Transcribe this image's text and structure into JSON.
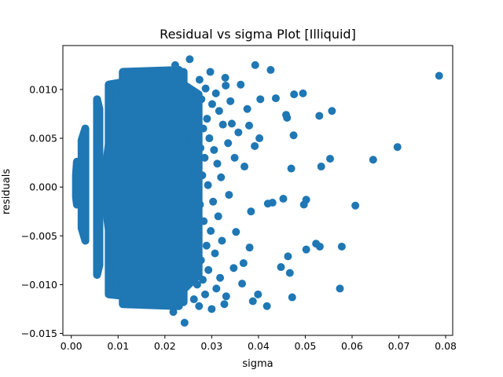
{
  "chart_data": {
    "type": "scatter",
    "title": "Residual vs sigma Plot [Illiquid]",
    "xlabel": "sigma",
    "ylabel": "residuals",
    "xlim": [
      -0.0018,
      0.0815
    ],
    "ylim": [
      -0.0152,
      0.0145
    ],
    "xticks": [
      0.0,
      0.01,
      0.02,
      0.03,
      0.04,
      0.05,
      0.06,
      0.07,
      0.08
    ],
    "xtick_labels": [
      "0.00",
      "0.01",
      "0.02",
      "0.03",
      "0.04",
      "0.05",
      "0.06",
      "0.07",
      "0.08"
    ],
    "yticks": [
      -0.015,
      -0.01,
      -0.005,
      0.0,
      0.005,
      0.01
    ],
    "ytick_labels": [
      "−0.015",
      "−0.010",
      "−0.005",
      "0.000",
      "0.005",
      "0.010"
    ],
    "grid": false,
    "marker_color": "#1f77b4",
    "series": [
      {
        "points": [
          [
            0.0786,
            0.0114
          ],
          [
            0.0697,
            0.0041
          ],
          [
            0.0645,
            0.0028
          ],
          [
            0.0607,
            -0.0019
          ],
          [
            0.0578,
            -0.0061
          ],
          [
            0.0574,
            -0.0104
          ],
          [
            0.0557,
            0.0078
          ],
          [
            0.0553,
            0.0029
          ],
          [
            0.0534,
            0.0021
          ],
          [
            0.053,
            0.0073
          ],
          [
            0.0531,
            -0.0061
          ],
          [
            0.0523,
            -0.0058
          ],
          [
            0.0502,
            -0.0064
          ],
          [
            0.0502,
            -0.0013
          ],
          [
            0.0497,
            -0.0018
          ],
          [
            0.0495,
            0.0096
          ],
          [
            0.0476,
            0.0095
          ],
          [
            0.0475,
            0.0053
          ],
          [
            0.0472,
            -0.0113
          ],
          [
            0.047,
            0.0019
          ],
          [
            0.0467,
            -0.0088
          ],
          [
            0.0463,
            -0.0071
          ],
          [
            0.0461,
            0.0071
          ],
          [
            0.0459,
            0.0074
          ],
          [
            0.0453,
            -0.0012
          ],
          [
            0.0448,
            -0.0082
          ],
          [
            0.0437,
            0.0091
          ],
          [
            0.043,
            -0.0016
          ],
          [
            0.0426,
            0.012
          ],
          [
            0.042,
            -0.0017
          ],
          [
            0.0418,
            -0.0122
          ],
          [
            0.0404,
            0.009
          ],
          [
            0.0402,
            0.005
          ],
          [
            0.0399,
            -0.011
          ],
          [
            0.0393,
            0.0125
          ],
          [
            0.0392,
            0.0042
          ],
          [
            0.0388,
            -0.0117
          ],
          [
            0.0384,
            -0.0025
          ],
          [
            0.038,
            0.0063
          ],
          [
            0.0381,
            -0.0062
          ],
          [
            0.0376,
            0.008
          ],
          [
            0.037,
            0.0021
          ],
          [
            0.0368,
            -0.0078
          ],
          [
            0.0365,
            -0.0099
          ],
          [
            0.0362,
            0.0105
          ],
          [
            0.0357,
            0.0056
          ],
          [
            0.0352,
            -0.0046
          ],
          [
            0.0349,
            0.003
          ],
          [
            0.0347,
            -0.0083
          ],
          [
            0.0343,
            0.0065
          ],
          [
            0.034,
            0.0088
          ],
          [
            0.0337,
            -0.0008
          ],
          [
            0.0335,
            0.0045
          ],
          [
            0.0331,
            -0.0112
          ],
          [
            0.033,
            0.0104
          ],
          [
            0.0329,
            0.0112
          ],
          [
            0.0327,
            -0.012
          ],
          [
            0.0324,
            0.0064
          ],
          [
            0.0322,
            -0.0055
          ],
          [
            0.032,
            0.001
          ],
          [
            0.0318,
            -0.0093
          ],
          [
            0.0316,
            0.0078
          ],
          [
            0.0314,
            -0.003
          ],
          [
            0.0312,
            0.0024
          ],
          [
            0.031,
            -0.0104
          ],
          [
            0.0309,
            0.0096
          ],
          [
            0.0307,
            -0.0068
          ],
          [
            0.0305,
            0.0038
          ],
          [
            0.0303,
            -0.0015
          ],
          [
            0.0301,
            0.0085
          ],
          [
            0.03,
            -0.0125
          ],
          [
            0.0298,
            -0.0045
          ],
          [
            0.0297,
            0.0118
          ],
          [
            0.0295,
            0.005
          ],
          [
            0.0293,
            -0.0085
          ],
          [
            0.0292,
            0.0002
          ],
          [
            0.029,
            0.007
          ],
          [
            0.0289,
            -0.006
          ],
          [
            0.0287,
            0.0101
          ],
          [
            0.0286,
            -0.011
          ],
          [
            0.0285,
            0.003
          ],
          [
            0.0283,
            -0.0035
          ],
          [
            0.0282,
            0.006
          ],
          [
            0.0281,
            -0.0095
          ],
          [
            0.028,
            0.0012
          ],
          [
            0.0278,
            0.009
          ],
          [
            0.0277,
            -0.0075
          ],
          [
            0.0276,
            0.004
          ],
          [
            0.0275,
            -0.0018
          ],
          [
            0.0274,
            0.011
          ],
          [
            0.0273,
            -0.0122
          ],
          [
            0.0272,
            0.0022
          ],
          [
            0.0271,
            -0.005
          ],
          [
            0.027,
            0.0075
          ],
          [
            0.0269,
            -0.01
          ],
          [
            0.0268,
            0.0055
          ],
          [
            0.0267,
            -0.0028
          ],
          [
            0.0266,
            0.0095
          ],
          [
            0.0265,
            -0.008
          ],
          [
            0.0264,
            0.0015
          ],
          [
            0.0253,
            0.0131
          ],
          [
            0.0242,
            -0.0139
          ],
          [
            0.0222,
            0.0125
          ],
          [
            0.0218,
            -0.0128
          ],
          [
            0.0262,
            -0.0115
          ]
        ]
      }
    ]
  }
}
